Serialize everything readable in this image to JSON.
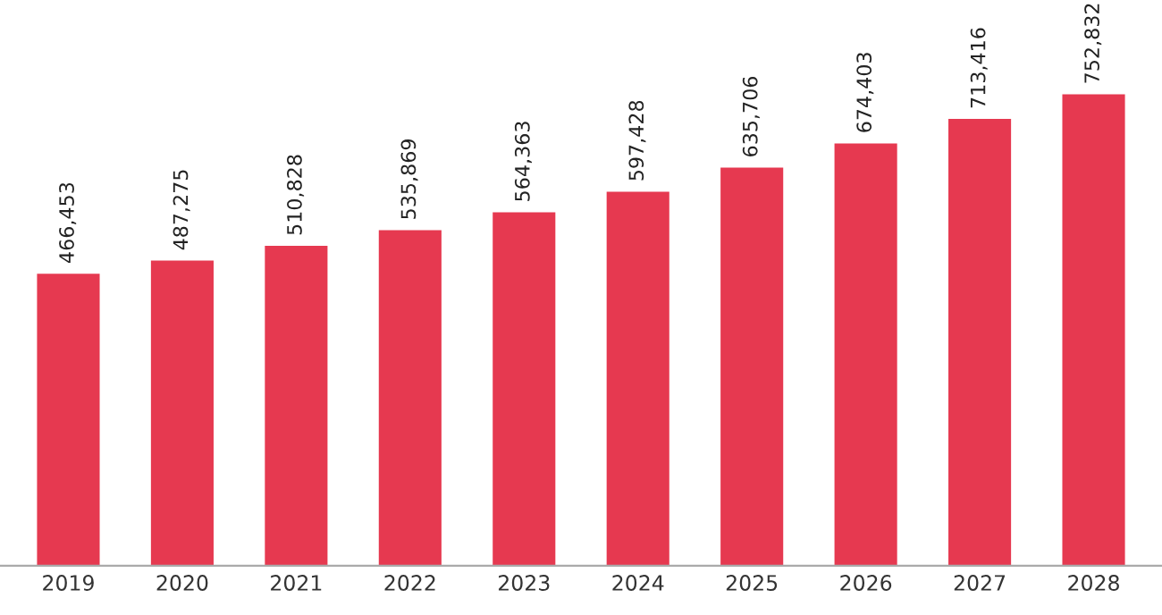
{
  "chart_data": {
    "type": "bar",
    "categories": [
      "2019",
      "2020",
      "2021",
      "2022",
      "2023",
      "2024",
      "2025",
      "2026",
      "2027",
      "2028"
    ],
    "values": [
      466453,
      487275,
      510828,
      535869,
      564363,
      597428,
      635706,
      674403,
      713416,
      752832
    ],
    "value_labels": [
      "466,453",
      "487,275",
      "510,828",
      "535,869",
      "564,363",
      "597,428",
      "635,706",
      "674,403",
      "713,416",
      "752,832"
    ],
    "color": "#e63950",
    "tick_labels": "x",
    "grid": false,
    "legend": false
  }
}
